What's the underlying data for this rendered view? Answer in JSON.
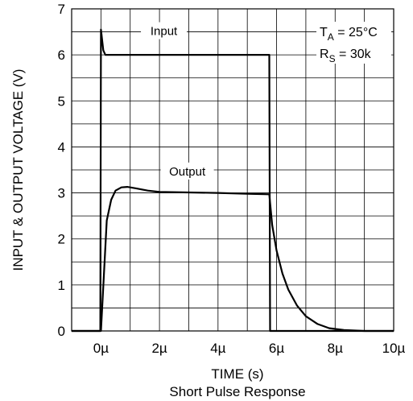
{
  "chart_data": {
    "type": "line",
    "title": "Short Pulse Response",
    "xlabel": "TIME (s)",
    "ylabel": "INPUT & OUTPUT VOLTAGE (V)",
    "xlim": [
      -1,
      10
    ],
    "ylim": [
      0,
      7
    ],
    "x_ticks": [
      {
        "value": 0,
        "label": "0µ"
      },
      {
        "value": 2,
        "label": "2µ"
      },
      {
        "value": 4,
        "label": "4µ"
      },
      {
        "value": 6,
        "label": "6µ"
      },
      {
        "value": 8,
        "label": "8µ"
      },
      {
        "value": 10,
        "label": "10µ"
      }
    ],
    "y_ticks": [
      {
        "value": 0,
        "label": "0"
      },
      {
        "value": 1,
        "label": "1"
      },
      {
        "value": 2,
        "label": "2"
      },
      {
        "value": 3,
        "label": "3"
      },
      {
        "value": 4,
        "label": "4"
      },
      {
        "value": 5,
        "label": "5"
      },
      {
        "value": 6,
        "label": "6"
      },
      {
        "value": 7,
        "label": "7"
      }
    ],
    "grid": true,
    "conditions": {
      "ta_main": "T",
      "ta_sub": "A",
      "ta_value": " = 25°C",
      "rs_main": "R",
      "rs_sub": "S",
      "rs_value": " = 30k"
    },
    "series": [
      {
        "name": "Input",
        "label_at": [
          2.15,
          6.5
        ],
        "points": [
          [
            -1.0,
            0.0
          ],
          [
            -0.02,
            0.0
          ],
          [
            0.0,
            6.55
          ],
          [
            0.08,
            6.1
          ],
          [
            0.15,
            6.0
          ],
          [
            2.0,
            6.0
          ],
          [
            4.0,
            6.0
          ],
          [
            5.75,
            6.0
          ],
          [
            5.78,
            0.0
          ],
          [
            10.0,
            0.0
          ]
        ]
      },
      {
        "name": "Output",
        "label_at": [
          2.95,
          3.45
        ],
        "points": [
          [
            -1.0,
            0.0
          ],
          [
            0.0,
            0.0
          ],
          [
            0.1,
            1.2
          ],
          [
            0.2,
            2.4
          ],
          [
            0.35,
            2.85
          ],
          [
            0.5,
            3.05
          ],
          [
            0.7,
            3.12
          ],
          [
            0.9,
            3.13
          ],
          [
            1.2,
            3.1
          ],
          [
            1.6,
            3.05
          ],
          [
            2.0,
            3.02
          ],
          [
            3.0,
            3.01
          ],
          [
            4.0,
            3.0
          ],
          [
            5.0,
            2.98
          ],
          [
            5.75,
            2.97
          ],
          [
            5.85,
            2.3
          ],
          [
            6.0,
            1.75
          ],
          [
            6.2,
            1.25
          ],
          [
            6.4,
            0.9
          ],
          [
            6.7,
            0.55
          ],
          [
            7.0,
            0.32
          ],
          [
            7.4,
            0.15
          ],
          [
            7.8,
            0.06
          ],
          [
            8.3,
            0.02
          ],
          [
            9.0,
            0.0
          ],
          [
            10.0,
            0.0
          ]
        ]
      }
    ]
  }
}
